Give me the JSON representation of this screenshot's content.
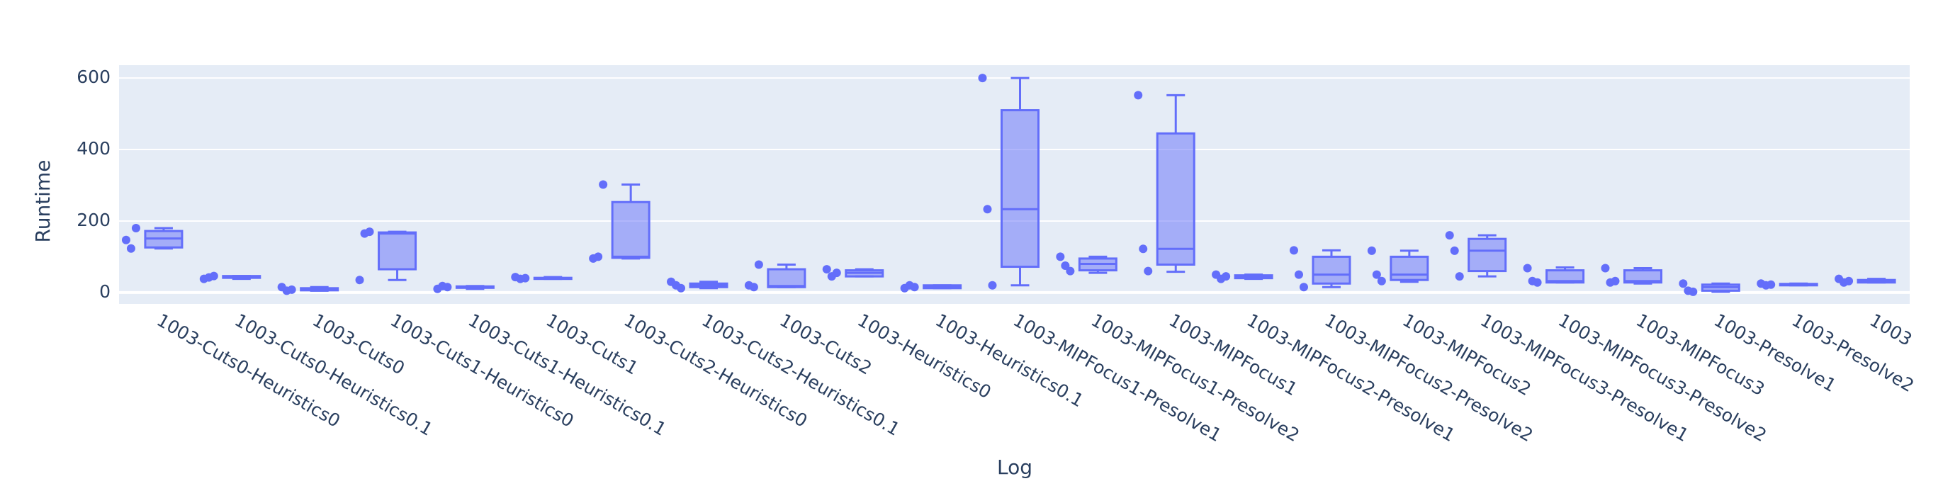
{
  "chart_data": {
    "type": "box",
    "x_label": "Log",
    "y_label": "Runtime",
    "color": "#636efa",
    "grid": true,
    "ylim": [
      -32,
      636
    ],
    "yticks": [
      0,
      200,
      400,
      600
    ],
    "categories": [
      "1003-Cuts0-Heuristics0",
      "1003-Cuts0-Heuristics0.1",
      "1003-Cuts0",
      "1003-Cuts1-Heuristics0",
      "1003-Cuts1-Heuristics0.1",
      "1003-Cuts1",
      "1003-Cuts2-Heuristics0",
      "1003-Cuts2-Heuristics0.1",
      "1003-Cuts2",
      "1003-Heuristics0",
      "1003-Heuristics0.1",
      "1003-MIPFocus1-Presolve1",
      "1003-MIPFocus1-Presolve2",
      "1003-MIPFocus1",
      "1003-MIPFocus2-Presolve1",
      "1003-MIPFocus2-Presolve2",
      "1003-MIPFocus2",
      "1003-MIPFocus3-Presolve1",
      "1003-MIPFocus3-Presolve2",
      "1003-MIPFocus3",
      "1003-Presolve1",
      "1003-Presolve2",
      "1003"
    ],
    "boxes": [
      {
        "lower": 123,
        "q1": 126,
        "median": 151,
        "q3": 172,
        "upper": 180,
        "points": [
          147,
          123,
          180
        ]
      },
      {
        "lower": 38,
        "q1": 41,
        "median": 43,
        "q3": 46,
        "upper": 46,
        "points": [
          38,
          42,
          46
        ]
      },
      {
        "lower": 5,
        "q1": 6,
        "median": 8,
        "q3": 12,
        "upper": 15,
        "points": [
          15,
          5,
          8
        ]
      },
      {
        "lower": 35,
        "q1": 65,
        "median": 165,
        "q3": 168,
        "upper": 170,
        "points": [
          35,
          165,
          170
        ]
      },
      {
        "lower": 10,
        "q1": 13,
        "median": 15,
        "q3": 17,
        "upper": 18,
        "points": [
          10,
          18,
          15
        ]
      },
      {
        "lower": 38,
        "q1": 38,
        "median": 40,
        "q3": 41,
        "upper": 43,
        "points": [
          43,
          38,
          40
        ]
      },
      {
        "lower": 95,
        "q1": 97,
        "median": 100,
        "q3": 253,
        "upper": 302,
        "points": [
          95,
          100,
          302
        ]
      },
      {
        "lower": 12,
        "q1": 15,
        "median": 20,
        "q3": 25,
        "upper": 30,
        "points": [
          30,
          20,
          12
        ]
      },
      {
        "lower": 15,
        "q1": 15,
        "median": 18,
        "q3": 65,
        "upper": 78,
        "points": [
          20,
          15,
          78
        ]
      },
      {
        "lower": 45,
        "q1": 45,
        "median": 55,
        "q3": 62,
        "upper": 65,
        "points": [
          65,
          45,
          55
        ]
      },
      {
        "lower": 12,
        "q1": 12,
        "median": 15,
        "q3": 20,
        "upper": 20,
        "points": [
          12,
          20,
          15
        ]
      },
      {
        "lower": 20,
        "q1": 72,
        "median": 233,
        "q3": 510,
        "upper": 600,
        "points": [
          600,
          233,
          20
        ]
      },
      {
        "lower": 55,
        "q1": 62,
        "median": 80,
        "q3": 95,
        "upper": 100,
        "points": [
          100,
          75,
          60
        ]
      },
      {
        "lower": 58,
        "q1": 78,
        "median": 122,
        "q3": 445,
        "upper": 552,
        "points": [
          552,
          122,
          60
        ]
      },
      {
        "lower": 38,
        "q1": 40,
        "median": 45,
        "q3": 48,
        "upper": 50,
        "points": [
          50,
          38,
          45
        ]
      },
      {
        "lower": 15,
        "q1": 25,
        "median": 50,
        "q3": 100,
        "upper": 118,
        "points": [
          118,
          50,
          15
        ]
      },
      {
        "lower": 30,
        "q1": 35,
        "median": 50,
        "q3": 100,
        "upper": 117,
        "points": [
          117,
          50,
          32
        ]
      },
      {
        "lower": 45,
        "q1": 60,
        "median": 117,
        "q3": 150,
        "upper": 160,
        "points": [
          160,
          117,
          45
        ]
      },
      {
        "lower": 28,
        "q1": 28,
        "median": 32,
        "q3": 62,
        "upper": 70,
        "points": [
          68,
          32,
          28
        ]
      },
      {
        "lower": 25,
        "q1": 28,
        "median": 32,
        "q3": 62,
        "upper": 68,
        "points": [
          68,
          28,
          32
        ]
      },
      {
        "lower": 2,
        "q1": 5,
        "median": 15,
        "q3": 22,
        "upper": 25,
        "points": [
          25,
          5,
          2
        ]
      },
      {
        "lower": 20,
        "q1": 20,
        "median": 22,
        "q3": 24,
        "upper": 25,
        "points": [
          25,
          20,
          22
        ]
      },
      {
        "lower": 28,
        "q1": 28,
        "median": 32,
        "q3": 35,
        "upper": 38,
        "points": [
          38,
          28,
          32
        ]
      }
    ]
  }
}
